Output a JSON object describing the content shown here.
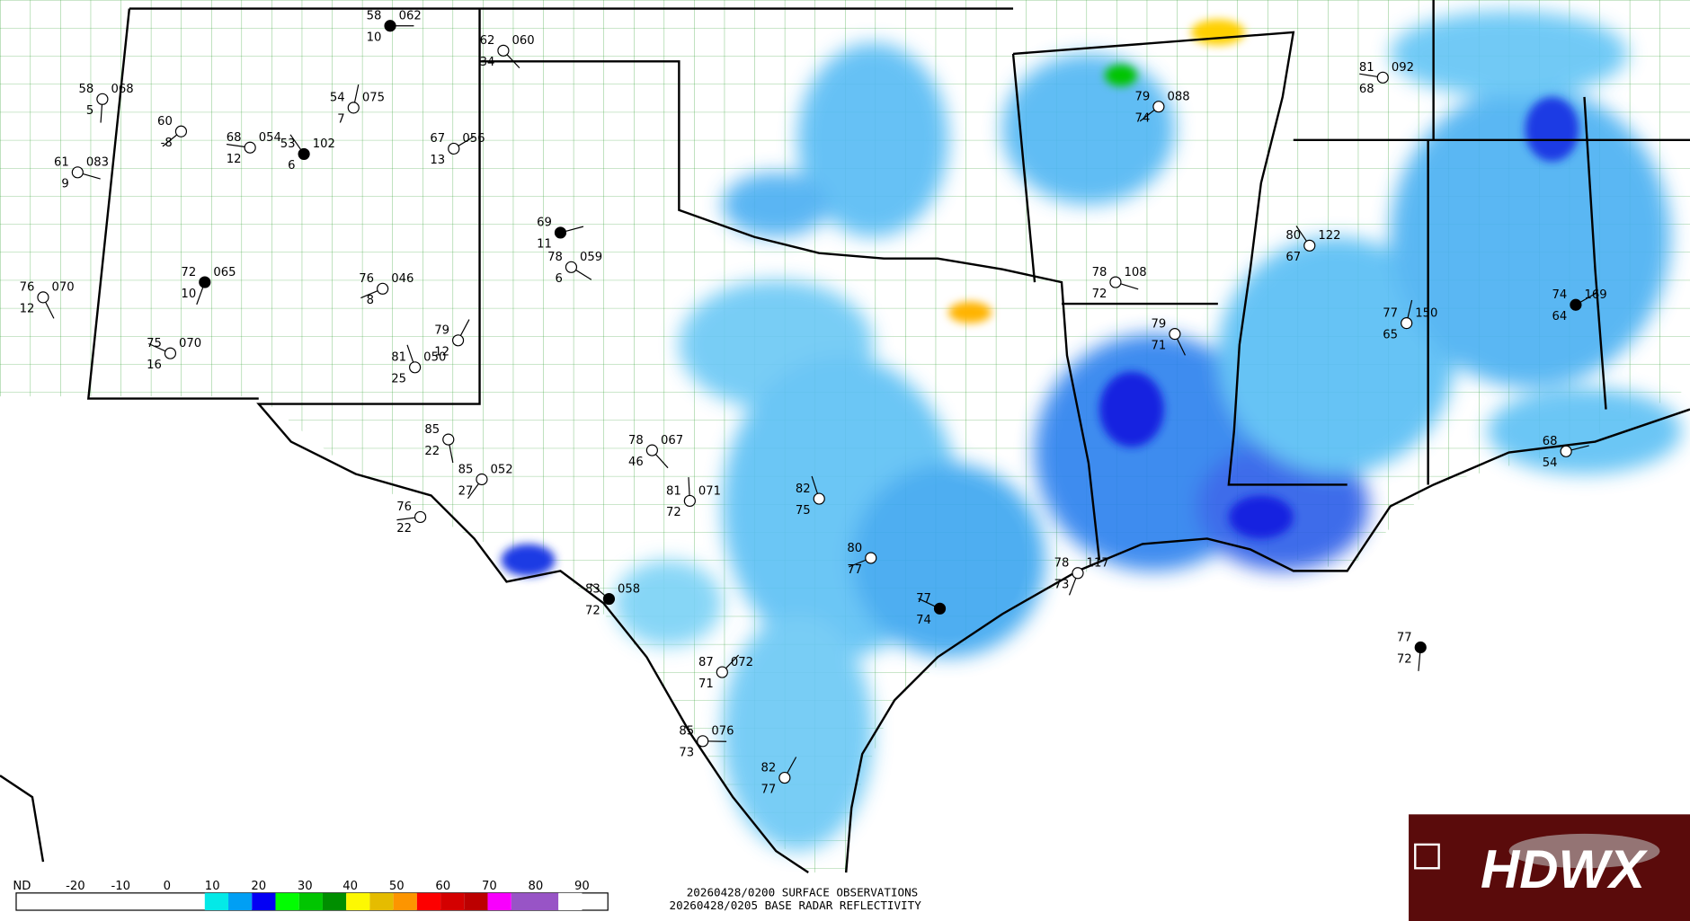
{
  "caption_lines": [
    "20260428/0200 SURFACE OBSERVATIONS",
    "20260428/0205 BASE RADAR REFLECTIVITY"
  ],
  "logo": {
    "text": "HDWX"
  },
  "legend": {
    "labels": [
      "ND",
      "-20",
      "-10",
      "0",
      "10",
      "20",
      "30",
      "40",
      "50",
      "60",
      "70",
      "80",
      "90"
    ],
    "colors": [
      "#04e9e7",
      "#019ff4",
      "#0300f4",
      "#02fd02",
      "#01c501",
      "#008e00",
      "#fdf802",
      "#e5bc00",
      "#fd9500",
      "#fd0000",
      "#d40000",
      "#bc0000",
      "#f800fd",
      "#9854c6",
      "#9854c6",
      "#ffffff"
    ]
  },
  "stations": [
    {
      "temp": 58,
      "dewpoint": 10,
      "pressure": "062"
    },
    {
      "temp": 62,
      "dewpoint": 34,
      "pressure": "060"
    },
    {
      "temp": 58,
      "dewpoint": 5,
      "pressure": "068"
    },
    {
      "temp": 60,
      "dewpoint": -8
    },
    {
      "temp": 68,
      "dewpoint": 12,
      "pressure": "054"
    },
    {
      "temp": 53,
      "dewpoint": 6,
      "pressure": "102"
    },
    {
      "temp": 54,
      "dewpoint": 7,
      "pressure": "075"
    },
    {
      "temp": 67,
      "dewpoint": 13,
      "pressure": "056"
    },
    {
      "temp": 61,
      "dewpoint": 9,
      "pressure": "083"
    },
    {
      "temp": 76,
      "dewpoint": 12,
      "pressure": "070"
    },
    {
      "temp": 72,
      "dewpoint": 10,
      "pressure": "065"
    },
    {
      "temp": 76,
      "dewpoint": 8,
      "pressure": "046"
    },
    {
      "temp": 75,
      "dewpoint": 16,
      "pressure": "070"
    },
    {
      "temp": 81,
      "dewpoint": 25,
      "pressure": "050"
    },
    {
      "temp": 79,
      "dewpoint": 12
    },
    {
      "temp": 69,
      "dewpoint": 11
    },
    {
      "temp": 78,
      "dewpoint": 6,
      "pressure": "059"
    },
    {
      "temp": 85,
      "dewpoint": 22
    },
    {
      "temp": 85,
      "dewpoint": 27,
      "pressure": "052"
    },
    {
      "temp": 76,
      "dewpoint": 22
    },
    {
      "temp": 83,
      "dewpoint": 72,
      "pressure": "058"
    },
    {
      "temp": 81,
      "dewpoint": 72,
      "pressure": "071"
    },
    {
      "temp": 87,
      "dewpoint": 71,
      "pressure": "072"
    },
    {
      "temp": 85,
      "dewpoint": 73,
      "pressure": "076"
    },
    {
      "temp": 78,
      "dewpoint": 46,
      "pressure": "067"
    },
    {
      "temp": 77,
      "dewpoint": 72
    },
    {
      "temp": 79,
      "dewpoint": 74,
      "pressure": "088"
    },
    {
      "temp": 81,
      "dewpoint": 68,
      "pressure": "092"
    },
    {
      "temp": 80,
      "dewpoint": 67,
      "pressure": "122"
    },
    {
      "temp": 77,
      "dewpoint": 65,
      "pressure": "150"
    },
    {
      "temp": 74,
      "dewpoint": 64,
      "pressure": "169"
    },
    {
      "temp": 78,
      "dewpoint": 72,
      "pressure": "108"
    },
    {
      "temp": 79,
      "dewpoint": 71
    },
    {
      "temp": 78,
      "dewpoint": 73,
      "pressure": "117"
    },
    {
      "temp": 80,
      "dewpoint": 77
    },
    {
      "temp": 77,
      "dewpoint": 74
    },
    {
      "temp": 82,
      "dewpoint": 75
    },
    {
      "temp": 82,
      "dewpoint": 77
    },
    {
      "temp": 68,
      "dewpoint": 54
    }
  ]
}
